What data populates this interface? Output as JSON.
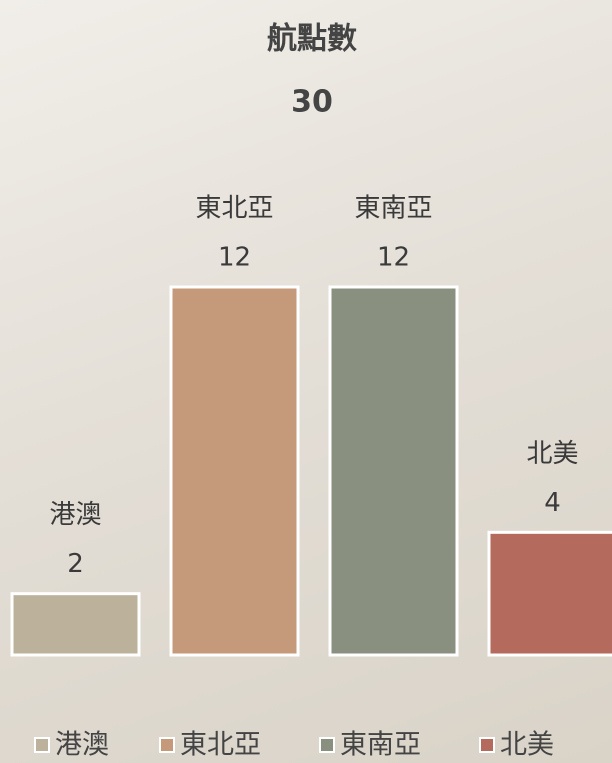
{
  "chart_data": {
    "type": "bar",
    "title": "航點數",
    "subtitle": "30",
    "categories": [
      "港澳",
      "東北亞",
      "東南亞",
      "北美"
    ],
    "values": [
      2,
      12,
      12,
      4
    ],
    "colors": [
      "#bcb29b",
      "#c49a7b",
      "#899080",
      "#b46b5e"
    ]
  }
}
